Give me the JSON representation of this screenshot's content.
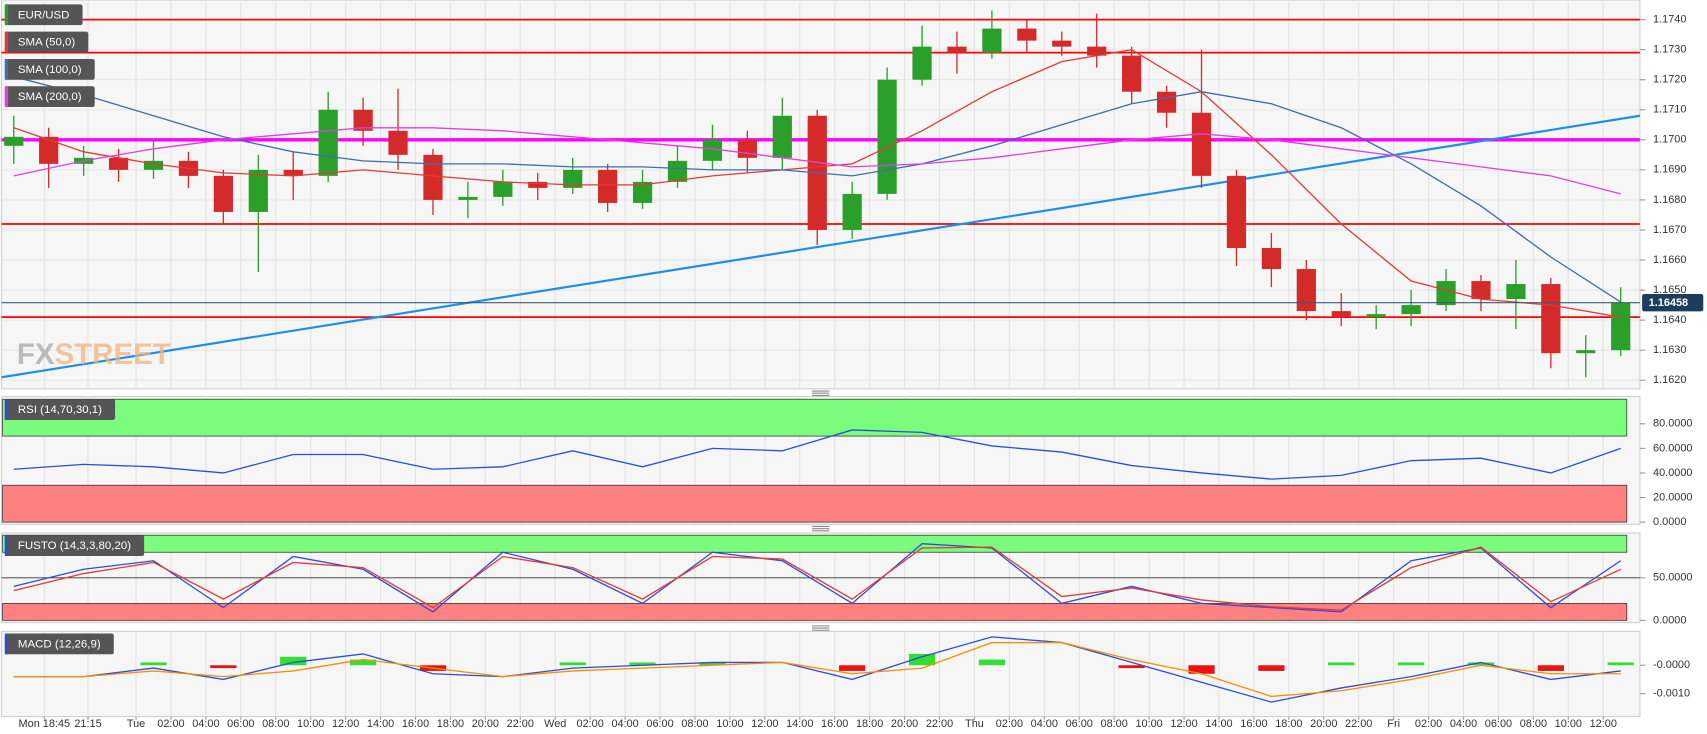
{
  "chart_data": [
    {
      "type": "candlestick",
      "name": "EUR/USD",
      "watermark": [
        "FX",
        "STREET"
      ],
      "x": [
        -7,
        -5,
        -3,
        -1,
        1,
        3,
        5,
        7,
        9,
        11,
        13,
        15,
        17,
        19,
        21,
        23,
        25,
        27,
        29,
        31,
        33,
        35,
        37,
        39,
        41,
        43,
        45,
        47,
        49,
        51,
        53,
        55,
        57,
        59,
        61,
        63,
        65,
        67,
        69,
        71,
        73,
        75,
        77,
        79,
        81,
        83,
        85
      ],
      "open": [
        1.1698,
        1.1701,
        1.1692,
        1.1694,
        1.169,
        1.1693,
        1.1688,
        1.1676,
        1.169,
        1.1688,
        1.171,
        1.1703,
        1.1695,
        1.168,
        1.1681,
        1.1686,
        1.1684,
        1.169,
        1.1679,
        1.1686,
        1.1693,
        1.17,
        1.1694,
        1.1708,
        1.167,
        1.1682,
        1.172,
        1.1731,
        1.1729,
        1.1737,
        1.1733,
        1.1731,
        1.1728,
        1.1716,
        1.1709,
        1.1688,
        1.1664,
        1.1657,
        1.1643,
        1.1641,
        1.1642,
        1.1645,
        1.1653,
        1.1647,
        1.1652,
        1.1629,
        1.163
      ],
      "high": [
        1.1708,
        1.1704,
        1.1698,
        1.1697,
        1.17,
        1.1696,
        1.169,
        1.1695,
        1.1696,
        1.1716,
        1.1714,
        1.1717,
        1.1697,
        1.1686,
        1.169,
        1.1689,
        1.1694,
        1.1692,
        1.169,
        1.1698,
        1.1705,
        1.1703,
        1.1714,
        1.171,
        1.1686,
        1.1724,
        1.1738,
        1.1736,
        1.1743,
        1.174,
        1.1736,
        1.1742,
        1.1731,
        1.1718,
        1.173,
        1.169,
        1.1669,
        1.166,
        1.1649,
        1.1645,
        1.165,
        1.1657,
        1.1655,
        1.166,
        1.1654,
        1.1635,
        1.1651
      ],
      "low": [
        1.1692,
        1.1684,
        1.1688,
        1.1686,
        1.1687,
        1.1684,
        1.1672,
        1.1656,
        1.168,
        1.1686,
        1.1698,
        1.169,
        1.1675,
        1.1674,
        1.1678,
        1.168,
        1.1682,
        1.1676,
        1.1677,
        1.1684,
        1.169,
        1.1689,
        1.169,
        1.1665,
        1.1667,
        1.168,
        1.1718,
        1.1722,
        1.1727,
        1.1729,
        1.1728,
        1.1724,
        1.1712,
        1.1704,
        1.1684,
        1.1658,
        1.1651,
        1.164,
        1.1638,
        1.1637,
        1.1638,
        1.1643,
        1.1643,
        1.1637,
        1.1624,
        1.1621,
        1.1628
      ],
      "close": [
        1.1701,
        1.1692,
        1.1694,
        1.169,
        1.1693,
        1.1688,
        1.1676,
        1.169,
        1.1688,
        1.171,
        1.1703,
        1.1695,
        1.168,
        1.1681,
        1.1686,
        1.1684,
        1.169,
        1.1679,
        1.1686,
        1.1693,
        1.17,
        1.1694,
        1.1708,
        1.167,
        1.1682,
        1.172,
        1.1731,
        1.1729,
        1.1737,
        1.1733,
        1.1731,
        1.1728,
        1.1716,
        1.1709,
        1.1688,
        1.1664,
        1.1657,
        1.1643,
        1.1641,
        1.1642,
        1.1645,
        1.1653,
        1.1647,
        1.1652,
        1.1629,
        1.163,
        1.16458
      ],
      "up_color": "#2a9f2a",
      "down_color": "#d42a2a",
      "series": [
        {
          "name": "SMA (50,0)",
          "color": "#e53935",
          "x": [
            -7,
            -3,
            1,
            5,
            9,
            13,
            17,
            21,
            25,
            29,
            33,
            37,
            41,
            45,
            49,
            53,
            57,
            61,
            65,
            69,
            73,
            77,
            81,
            85
          ],
          "values": [
            1.1704,
            1.1696,
            1.1692,
            1.1689,
            1.1688,
            1.169,
            1.1688,
            1.1686,
            1.1685,
            1.1685,
            1.1688,
            1.169,
            1.1692,
            1.1703,
            1.1716,
            1.1726,
            1.173,
            1.1716,
            1.1695,
            1.1672,
            1.1653,
            1.1647,
            1.1645,
            1.1641
          ]
        },
        {
          "name": "SMA (100,0)",
          "color": "#3a6fb0",
          "x": [
            -7,
            -3,
            1,
            5,
            9,
            13,
            17,
            21,
            25,
            29,
            33,
            37,
            41,
            45,
            49,
            53,
            57,
            61,
            65,
            69,
            73,
            77,
            81,
            85
          ],
          "values": [
            1.1721,
            1.1715,
            1.1708,
            1.1701,
            1.1696,
            1.1693,
            1.1692,
            1.1692,
            1.1691,
            1.1691,
            1.169,
            1.169,
            1.1688,
            1.1692,
            1.1698,
            1.1705,
            1.1712,
            1.1716,
            1.1712,
            1.1704,
            1.1692,
            1.1678,
            1.1661,
            1.1646
          ]
        },
        {
          "name": "SMA (200,0)",
          "color": "#e040e0",
          "x": [
            -7,
            -3,
            1,
            5,
            9,
            13,
            17,
            21,
            25,
            29,
            33,
            37,
            41,
            45,
            49,
            53,
            57,
            61,
            65,
            69,
            73,
            77,
            81,
            85
          ],
          "values": [
            1.1688,
            1.1693,
            1.1697,
            1.17,
            1.1702,
            1.1704,
            1.1704,
            1.1703,
            1.1701,
            1.1699,
            1.1697,
            1.1694,
            1.1691,
            1.1692,
            1.1694,
            1.1697,
            1.17,
            1.1702,
            1.17,
            1.1697,
            1.1694,
            1.1691,
            1.1688,
            1.1682
          ]
        }
      ],
      "hlines": [
        {
          "value": 1.174,
          "color": "#ff0000"
        },
        {
          "value": 1.1729,
          "color": "#ff0000"
        },
        {
          "value": 1.1672,
          "color": "#ff0000"
        },
        {
          "value": 1.1641,
          "color": "#ff0000"
        },
        {
          "value": 1.17,
          "color": "#ff00ff"
        }
      ],
      "trendline": {
        "x": [
          -7.7,
          86.1
        ],
        "values": [
          1.1621,
          1.1708
        ],
        "color": "#1e8fe8"
      },
      "last_price": 1.16458,
      "xlim": [
        -7.7,
        86.1
      ],
      "ylim": [
        1.16175,
        1.17447
      ],
      "yticks": [
        {
          "value": 1.162,
          "label": "1.1620"
        },
        {
          "value": 1.163,
          "label": "1.1630"
        },
        {
          "value": 1.164,
          "label": "1.1640"
        },
        {
          "value": 1.165,
          "label": "1.1650"
        },
        {
          "value": 1.166,
          "label": "1.1660"
        },
        {
          "value": 1.167,
          "label": "1.1670"
        },
        {
          "value": 1.168,
          "label": "1.1680"
        },
        {
          "value": 1.169,
          "label": "1.1690"
        },
        {
          "value": 1.17,
          "label": "1.1700"
        },
        {
          "value": 1.171,
          "label": "1.1710"
        },
        {
          "value": 1.172,
          "label": "1.1720"
        },
        {
          "value": 1.173,
          "label": "1.1730"
        },
        {
          "value": 1.174,
          "label": "1.1740"
        }
      ],
      "grid": true
    },
    {
      "type": "line",
      "name": "RSI (14,70,30,1)",
      "x": [
        -7,
        -3,
        1,
        5,
        9,
        13,
        17,
        21,
        25,
        29,
        33,
        37,
        41,
        45,
        49,
        53,
        57,
        61,
        65,
        69,
        73,
        77,
        81,
        85
      ],
      "series": [
        {
          "color": "#2a4ed8",
          "values": [
            43,
            47,
            45,
            40,
            55,
            55,
            43,
            45,
            58,
            45,
            60,
            58,
            75,
            73,
            62,
            57,
            46,
            40,
            35,
            38,
            50,
            52,
            40,
            60
          ]
        }
      ],
      "bands": [
        {
          "from": 70,
          "to": 100,
          "color": "#7cfc7c"
        },
        {
          "from": 0,
          "to": 30,
          "color": "#ff8080"
        }
      ],
      "xlim": [
        -7.7,
        86.1
      ],
      "ylim": [
        0,
        100
      ],
      "yticks": [
        {
          "value": 0,
          "label": "0.0000"
        },
        {
          "value": 20,
          "label": "20.0000"
        },
        {
          "value": 40,
          "label": "40.0000"
        },
        {
          "value": 60,
          "label": "60.0000"
        },
        {
          "value": 80,
          "label": "80.0000"
        }
      ]
    },
    {
      "type": "line",
      "name": "FUSTO (14,3,3,80,20)",
      "x": [
        -7,
        -3,
        1,
        5,
        9,
        13,
        17,
        21,
        25,
        29,
        33,
        37,
        41,
        45,
        49,
        53,
        57,
        61,
        65,
        69,
        73,
        77,
        81,
        85
      ],
      "series": [
        {
          "color": "#2a4ed8",
          "values": [
            40,
            60,
            70,
            15,
            75,
            60,
            10,
            80,
            60,
            20,
            80,
            70,
            20,
            90,
            85,
            20,
            40,
            20,
            15,
            10,
            70,
            85,
            15,
            70
          ]
        },
        {
          "color": "#e53935",
          "values": [
            35,
            55,
            68,
            25,
            68,
            62,
            15,
            75,
            62,
            25,
            75,
            72,
            25,
            85,
            86,
            28,
            38,
            24,
            16,
            12,
            62,
            86,
            22,
            60
          ]
        }
      ],
      "bands": [
        {
          "from": 80,
          "to": 100,
          "color": "#7cfc7c"
        },
        {
          "from": 0,
          "to": 20,
          "color": "#ff8080"
        }
      ],
      "midline": 50,
      "xlim": [
        -7.7,
        86.1
      ],
      "ylim": [
        0,
        100
      ],
      "yticks": [
        {
          "value": 0,
          "label": "0.0000"
        },
        {
          "value": 50,
          "label": "50.0000"
        }
      ]
    },
    {
      "type": "line",
      "name": "MACD (12,26,9)",
      "x": [
        -7,
        -3,
        1,
        5,
        9,
        13,
        17,
        21,
        25,
        29,
        33,
        37,
        41,
        45,
        49,
        53,
        57,
        61,
        65,
        69,
        73,
        77,
        81,
        85
      ],
      "series": [
        {
          "color": "#2a4ed8",
          "values": [
            -0.0004,
            -0.0004,
            -0.0001,
            -0.0005,
            0.0001,
            0.0004,
            -0.0003,
            -0.0004,
            -0.0001,
            0,
            0.0001,
            0.0001,
            -0.0005,
            0.0003,
            0.001,
            0.0008,
            0.0001,
            -0.0006,
            -0.0013,
            -0.0008,
            -0.0004,
            0.0001,
            -0.0005,
            -0.0002
          ]
        },
        {
          "color": "#ff8c00",
          "values": [
            -0.0004,
            -0.0004,
            -0.0002,
            -0.0004,
            -0.0002,
            0.0002,
            -0.0001,
            -0.0004,
            -0.0002,
            -0.0001,
            0,
            0.0001,
            -0.0003,
            -0.0001,
            0.0008,
            0.0008,
            0.0002,
            -0.0003,
            -0.0011,
            -0.0009,
            -0.0005,
            0,
            -0.0003,
            -0.0003
          ]
        }
      ],
      "histogram": {
        "values": [
          0,
          0,
          0.0001,
          -0.0001,
          0.0003,
          0.0002,
          -0.0002,
          0,
          0.0001,
          0.0001,
          0.0001,
          0,
          -0.0002,
          0.0004,
          0.0002,
          0,
          -0.0001,
          -0.0003,
          -0.0002,
          0.0001,
          0.0001,
          0.0001,
          -0.0002,
          0.0001
        ],
        "positive_color": "#33dd33",
        "negative_color": "#ee1111"
      },
      "xlim": [
        -7.7,
        86.1
      ],
      "ylim": [
        -0.00177,
        0.00112
      ],
      "yticks": [
        {
          "value": -0.001,
          "label": "-0.0010"
        },
        {
          "value": 0,
          "label": "-0.0000"
        }
      ],
      "xticks": [
        {
          "value": -5.25,
          "label": "Mon 18:45"
        },
        {
          "value": -2.75,
          "label": "21:15"
        },
        {
          "value": 0,
          "label": "Tue"
        },
        {
          "value": 2,
          "label": "02:00"
        },
        {
          "value": 4,
          "label": "04:00"
        },
        {
          "value": 6,
          "label": "06:00"
        },
        {
          "value": 8,
          "label": "08:00"
        },
        {
          "value": 10,
          "label": "10:00"
        },
        {
          "value": 12,
          "label": "12:00"
        },
        {
          "value": 14,
          "label": "14:00"
        },
        {
          "value": 16,
          "label": "16:00"
        },
        {
          "value": 18,
          "label": "18:00"
        },
        {
          "value": 20,
          "label": "20:00"
        },
        {
          "value": 22,
          "label": "22:00"
        },
        {
          "value": 24,
          "label": "Wed"
        },
        {
          "value": 26,
          "label": "02:00"
        },
        {
          "value": 28,
          "label": "04:00"
        },
        {
          "value": 30,
          "label": "06:00"
        },
        {
          "value": 32,
          "label": "08:00"
        },
        {
          "value": 34,
          "label": "10:00"
        },
        {
          "value": 36,
          "label": "12:00"
        },
        {
          "value": 38,
          "label": "14:00"
        },
        {
          "value": 40,
          "label": "16:00"
        },
        {
          "value": 42,
          "label": "18:00"
        },
        {
          "value": 44,
          "label": "20:00"
        },
        {
          "value": 46,
          "label": "22:00"
        },
        {
          "value": 48,
          "label": "Thu"
        },
        {
          "value": 50,
          "label": "02:00"
        },
        {
          "value": 52,
          "label": "04:00"
        },
        {
          "value": 54,
          "label": "06:00"
        },
        {
          "value": 56,
          "label": "08:00"
        },
        {
          "value": 58,
          "label": "10:00"
        },
        {
          "value": 60,
          "label": "12:00"
        },
        {
          "value": 62,
          "label": "14:00"
        },
        {
          "value": 64,
          "label": "16:00"
        },
        {
          "value": 66,
          "label": "18:00"
        },
        {
          "value": 68,
          "label": "20:00"
        },
        {
          "value": 70,
          "label": "22:00"
        },
        {
          "value": 72,
          "label": "Fri"
        },
        {
          "value": 74,
          "label": "02:00"
        },
        {
          "value": 76,
          "label": "04:00"
        },
        {
          "value": 78,
          "label": "06:00"
        },
        {
          "value": 80,
          "label": "08:00"
        },
        {
          "value": 82,
          "label": "10:00"
        },
        {
          "value": 84,
          "label": "12:00"
        }
      ]
    }
  ]
}
